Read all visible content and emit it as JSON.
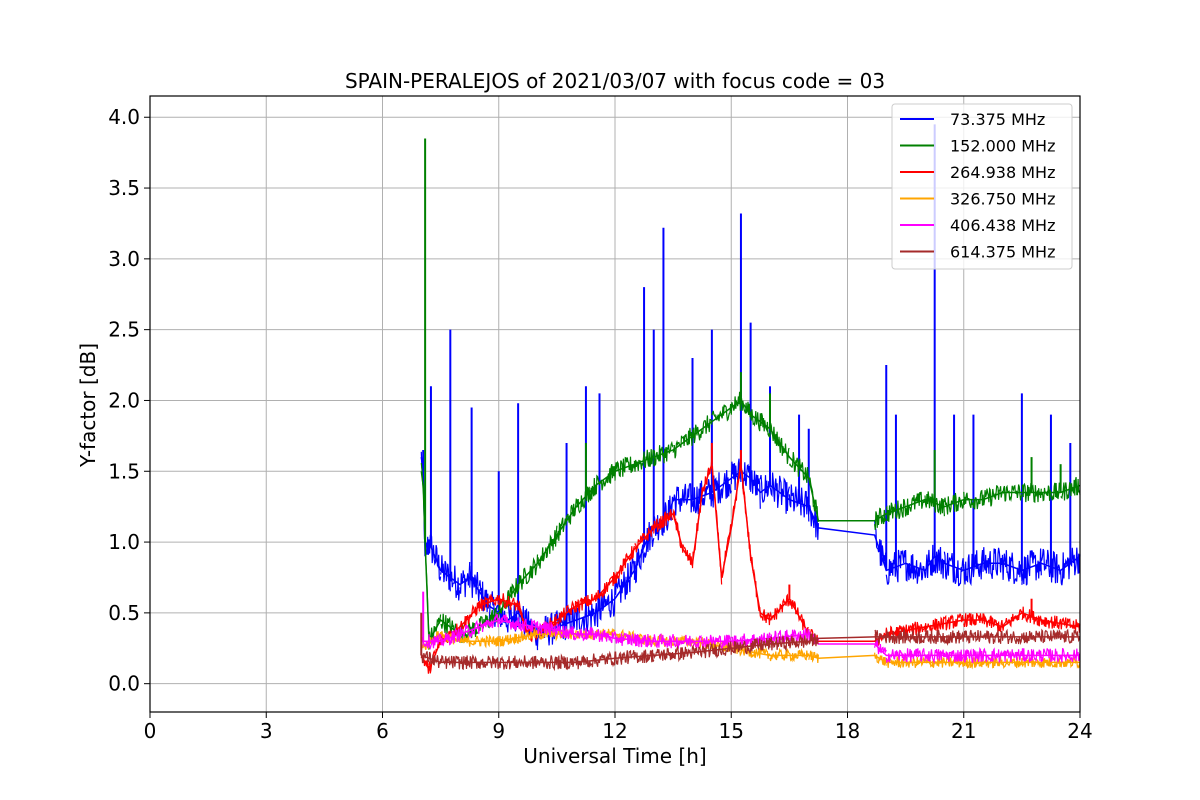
{
  "chart_data": {
    "type": "line",
    "title": "SPAIN-PERALEJOS of 2021/03/07 with focus code = 03",
    "xlabel": "Universal Time [h]",
    "ylabel": "Y-factor [dB]",
    "xlim": [
      0,
      24
    ],
    "ylim": [
      -0.2,
      4.15
    ],
    "xticks": [
      "0",
      "3",
      "6",
      "9",
      "12",
      "15",
      "18",
      "21",
      "24"
    ],
    "yticks": [
      "0.0",
      "0.5",
      "1.0",
      "1.5",
      "2.0",
      "2.5",
      "3.0",
      "3.5",
      "4.0"
    ],
    "grid": true,
    "legend_position": "top-right",
    "series": [
      {
        "name": "73.375 MHz",
        "color": "#0000ff",
        "x": [
          7.0,
          7.05,
          7.1,
          7.2,
          7.5,
          7.75,
          8.0,
          8.25,
          8.5,
          8.75,
          9.0,
          9.25,
          9.5,
          9.75,
          10.0,
          10.5,
          11.0,
          11.5,
          12.0,
          12.5,
          12.8,
          13.0,
          13.4,
          13.5,
          14.0,
          14.5,
          15.0,
          15.25,
          15.5,
          15.75,
          16.0,
          16.5,
          17.0,
          17.25,
          18.7,
          19.0,
          19.5,
          20.0,
          20.25,
          20.5,
          21.0,
          21.5,
          22.0,
          22.5,
          23.0,
          23.5,
          24.0
        ],
        "y": [
          1.6,
          1.5,
          0.9,
          1.0,
          0.8,
          0.75,
          0.7,
          0.75,
          0.65,
          0.55,
          0.5,
          0.45,
          0.5,
          0.4,
          0.35,
          0.4,
          0.45,
          0.5,
          0.6,
          0.8,
          1.0,
          1.1,
          1.2,
          1.3,
          1.3,
          1.35,
          1.45,
          1.5,
          1.45,
          1.35,
          1.4,
          1.3,
          1.25,
          1.1,
          1.05,
          0.8,
          0.85,
          0.8,
          0.9,
          0.85,
          0.8,
          0.85,
          0.85,
          0.8,
          0.85,
          0.8,
          0.9
        ],
        "peaks": [
          [
            7.05,
            1.65
          ],
          [
            7.25,
            2.1
          ],
          [
            7.75,
            2.5
          ],
          [
            8.3,
            1.95
          ],
          [
            9.0,
            1.5
          ],
          [
            9.5,
            1.98
          ],
          [
            10.75,
            1.7
          ],
          [
            11.25,
            2.1
          ],
          [
            11.6,
            2.05
          ],
          [
            12.75,
            2.8
          ],
          [
            13.0,
            2.5
          ],
          [
            13.25,
            3.22
          ],
          [
            14.0,
            2.3
          ],
          [
            14.5,
            2.5
          ],
          [
            15.25,
            3.32
          ],
          [
            15.5,
            2.55
          ],
          [
            16.0,
            2.1
          ],
          [
            16.75,
            1.9
          ],
          [
            17.0,
            1.8
          ],
          [
            19.0,
            2.25
          ],
          [
            19.25,
            1.9
          ],
          [
            20.25,
            3.95
          ],
          [
            20.75,
            1.9
          ],
          [
            21.25,
            1.9
          ],
          [
            22.5,
            2.05
          ],
          [
            23.25,
            1.9
          ],
          [
            23.75,
            1.7
          ]
        ]
      },
      {
        "name": "152.000 MHz",
        "color": "#008000",
        "x": [
          7.0,
          7.05,
          7.1,
          7.2,
          7.5,
          8.0,
          8.5,
          9.0,
          9.5,
          10.0,
          10.5,
          11.0,
          11.5,
          12.0,
          12.5,
          13.0,
          13.5,
          14.0,
          14.5,
          15.0,
          15.25,
          15.5,
          16.0,
          16.5,
          17.0,
          17.25,
          18.7,
          19.0,
          19.5,
          20.0,
          20.5,
          21.0,
          21.5,
          22.0,
          22.5,
          23.0,
          23.5,
          24.0
        ],
        "y": [
          1.5,
          1.4,
          1.0,
          0.3,
          0.45,
          0.35,
          0.4,
          0.5,
          0.7,
          0.85,
          1.05,
          1.25,
          1.4,
          1.5,
          1.55,
          1.6,
          1.65,
          1.75,
          1.85,
          1.95,
          2.0,
          1.9,
          1.8,
          1.6,
          1.45,
          1.15,
          1.15,
          1.2,
          1.25,
          1.3,
          1.25,
          1.3,
          1.3,
          1.35,
          1.35,
          1.35,
          1.35,
          1.4
        ],
        "peaks": [
          [
            7.1,
            3.85
          ],
          [
            11.25,
            1.7
          ],
          [
            15.25,
            2.2
          ],
          [
            16.0,
            2.05
          ],
          [
            20.25,
            1.65
          ],
          [
            22.75,
            1.6
          ],
          [
            23.5,
            1.55
          ]
        ]
      },
      {
        "name": "264.938 MHz",
        "color": "#ff0000",
        "x": [
          7.0,
          7.2,
          7.5,
          8.0,
          8.5,
          9.0,
          9.5,
          9.75,
          10.0,
          10.5,
          11.0,
          11.5,
          12.0,
          12.5,
          13.0,
          13.5,
          13.75,
          14.0,
          14.25,
          14.5,
          14.75,
          15.0,
          15.25,
          15.5,
          15.75,
          16.0,
          16.5,
          17.0,
          17.25,
          18.7,
          19.0,
          20.0,
          21.0,
          21.5,
          22.0,
          22.5,
          23.0,
          24.0
        ],
        "y": [
          0.2,
          0.1,
          0.3,
          0.4,
          0.55,
          0.6,
          0.55,
          0.35,
          0.35,
          0.45,
          0.55,
          0.6,
          0.75,
          0.95,
          1.1,
          1.2,
          0.95,
          0.85,
          1.35,
          1.55,
          0.75,
          1.1,
          1.55,
          0.9,
          0.5,
          0.45,
          0.6,
          0.35,
          0.3,
          0.3,
          0.35,
          0.4,
          0.45,
          0.45,
          0.4,
          0.5,
          0.45,
          0.4
        ],
        "peaks": [
          [
            14.5,
            1.7
          ],
          [
            15.25,
            1.65
          ],
          [
            16.5,
            0.7
          ],
          [
            22.75,
            0.6
          ]
        ]
      },
      {
        "name": "326.750 MHz",
        "color": "#ffa500",
        "x": [
          7.0,
          7.5,
          8.0,
          9.0,
          10.0,
          11.0,
          12.0,
          13.0,
          14.0,
          15.0,
          16.0,
          17.0,
          17.25,
          18.7,
          19.0,
          20.0,
          21.0,
          22.0,
          23.0,
          24.0
        ],
        "y": [
          0.25,
          0.35,
          0.3,
          0.3,
          0.35,
          0.35,
          0.35,
          0.3,
          0.3,
          0.25,
          0.2,
          0.2,
          0.18,
          0.2,
          0.15,
          0.15,
          0.15,
          0.15,
          0.15,
          0.15
        ],
        "peaks": []
      },
      {
        "name": "406.438 MHz",
        "color": "#ff00ff",
        "x": [
          7.0,
          7.5,
          8.0,
          8.5,
          9.0,
          9.5,
          10.0,
          10.5,
          11.0,
          11.5,
          12.0,
          13.0,
          14.0,
          15.0,
          16.0,
          17.0,
          17.25,
          18.7,
          19.0,
          20.0,
          21.0,
          22.0,
          23.0,
          24.0
        ],
        "y": [
          0.3,
          0.3,
          0.35,
          0.4,
          0.45,
          0.42,
          0.4,
          0.38,
          0.35,
          0.35,
          0.32,
          0.3,
          0.3,
          0.3,
          0.32,
          0.35,
          0.28,
          0.28,
          0.2,
          0.2,
          0.2,
          0.2,
          0.2,
          0.2
        ],
        "peaks": [
          [
            7.05,
            0.65
          ]
        ]
      },
      {
        "name": "614.375 MHz",
        "color": "#a52a2a",
        "x": [
          7.0,
          7.5,
          8.0,
          9.0,
          10.0,
          11.0,
          12.0,
          13.0,
          14.0,
          15.0,
          16.0,
          17.0,
          17.25,
          18.7,
          19.0,
          20.0,
          21.0,
          22.0,
          23.0,
          24.0
        ],
        "y": [
          0.2,
          0.15,
          0.15,
          0.15,
          0.15,
          0.15,
          0.18,
          0.2,
          0.22,
          0.25,
          0.28,
          0.3,
          0.32,
          0.33,
          0.33,
          0.33,
          0.33,
          0.33,
          0.33,
          0.33
        ],
        "peaks": [
          [
            7.0,
            0.5
          ]
        ]
      }
    ]
  }
}
